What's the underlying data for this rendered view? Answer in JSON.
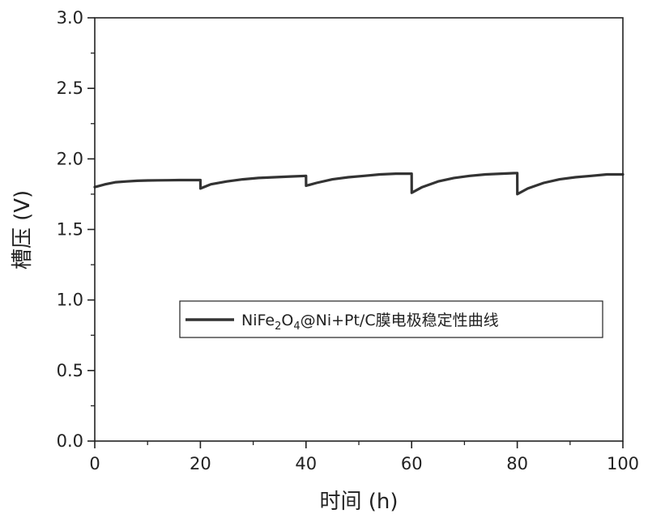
{
  "chart_data": {
    "type": "line",
    "xlabel": "时间 (h)",
    "ylabel": "槽压 (V)",
    "xlim": [
      0,
      100
    ],
    "ylim": [
      0.0,
      3.0
    ],
    "x_ticks": [
      "0",
      "20",
      "40",
      "60",
      "80",
      "100"
    ],
    "y_ticks": [
      "0.0",
      "0.5",
      "1.0",
      "1.5",
      "2.0",
      "2.5",
      "3.0"
    ],
    "grid": false,
    "legend_position": "center-right",
    "series": [
      {
        "name": "NiFe2O4@Ni+Pt/C膜电极稳定性曲线",
        "color": "#333333",
        "x": [
          0,
          2,
          4,
          6,
          8,
          10,
          12,
          14,
          16,
          18,
          20,
          20.01,
          22,
          25,
          28,
          31,
          34,
          37,
          40,
          40.01,
          42,
          45,
          48,
          51,
          54,
          57,
          60,
          60.01,
          62,
          65,
          68,
          71,
          74,
          77,
          80,
          80.01,
          82,
          85,
          88,
          91,
          94,
          97,
          100
        ],
        "y": [
          1.8,
          1.82,
          1.835,
          1.84,
          1.845,
          1.847,
          1.848,
          1.849,
          1.85,
          1.85,
          1.85,
          1.79,
          1.82,
          1.84,
          1.855,
          1.865,
          1.87,
          1.875,
          1.88,
          1.81,
          1.83,
          1.855,
          1.87,
          1.88,
          1.89,
          1.895,
          1.895,
          1.76,
          1.8,
          1.84,
          1.865,
          1.88,
          1.89,
          1.895,
          1.9,
          1.75,
          1.79,
          1.83,
          1.855,
          1.87,
          1.88,
          1.89,
          1.89
        ]
      }
    ]
  },
  "legend": {
    "prefix": "NiFe",
    "sub1": "2",
    "mid": "O",
    "sub2": "4",
    "suffix": "@Ni+Pt/C膜电极稳定性曲线"
  }
}
